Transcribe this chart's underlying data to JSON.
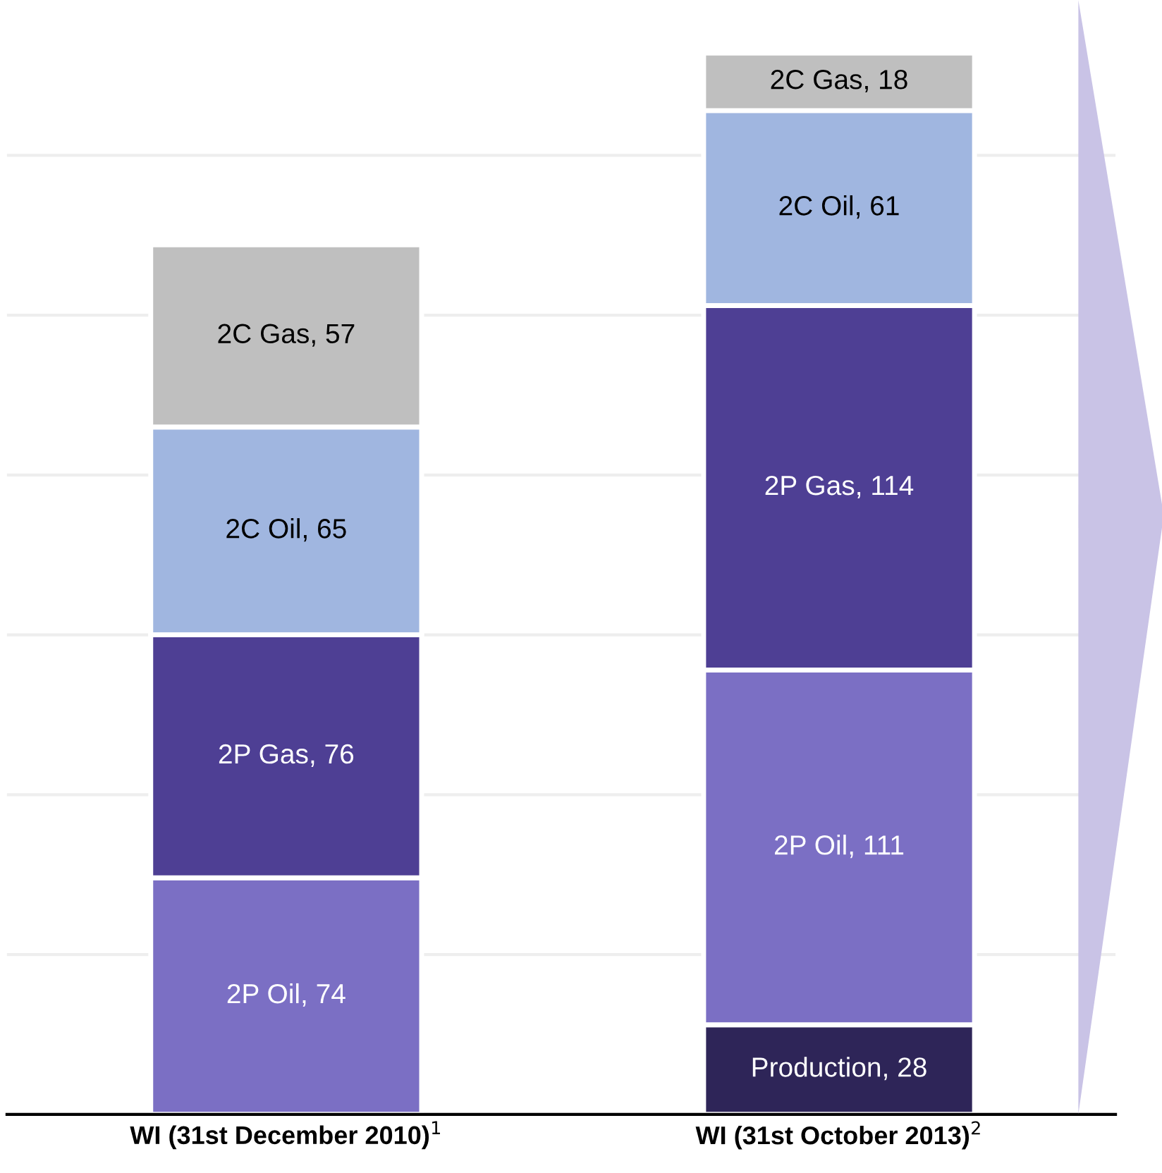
{
  "chart_data": {
    "type": "bar",
    "stacked": true,
    "categories": [
      "WI (31st December 2010)$^{1}$",
      "WI (31st October 2013)$^{2}$"
    ],
    "series": [
      {
        "color": "#2e2558",
        "values": [
          null,
          28
        ],
        "value_labels": [
          null,
          "Production, 28"
        ]
      },
      {
        "color": "#7b6fc4",
        "values": [
          74,
          111
        ],
        "value_labels": [
          "2P Oil, 74",
          "2P Oil, 111"
        ]
      },
      {
        "color": "#4e3f94",
        "values": [
          76,
          114
        ],
        "value_labels": [
          "2P Gas, 76",
          "2P Gas, 114"
        ]
      },
      {
        "color": "#a0b6e0",
        "values": [
          65,
          61
        ],
        "value_labels": [
          "2C Oil, 65",
          "2C Oil, 61"
        ]
      },
      {
        "color": "#bfbfbf",
        "values": [
          57,
          18
        ],
        "value_labels": [
          "2C Gas, 57",
          "2C Gas, 18"
        ]
      }
    ],
    "grid": "y",
    "tick_labels": "x",
    "legend": false
  }
}
